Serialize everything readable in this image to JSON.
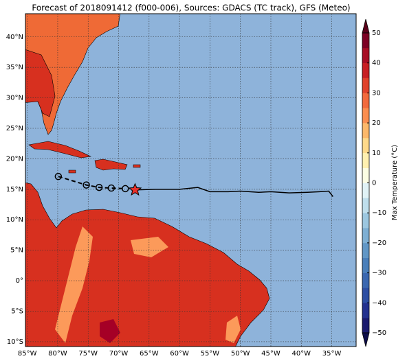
{
  "title": "Forecast of 2018091412 (f000-006), Sources: GDACS (TC track), GFS (Meteo)",
  "map": {
    "lonlim": [
      -85.3,
      -31.0
    ],
    "latlim": [
      -10.8,
      43.8
    ],
    "lonticks": [
      {
        "value": -85,
        "label": "85°W"
      },
      {
        "value": -80,
        "label": "80°W"
      },
      {
        "value": -75,
        "label": "75°W"
      },
      {
        "value": -70,
        "label": "70°W"
      },
      {
        "value": -65,
        "label": "65°W"
      },
      {
        "value": -60,
        "label": "60°W"
      },
      {
        "value": -55,
        "label": "55°W"
      },
      {
        "value": -50,
        "label": "50°W"
      },
      {
        "value": -45,
        "label": "45°W"
      },
      {
        "value": -40,
        "label": "40°W"
      },
      {
        "value": -35,
        "label": "35°W"
      }
    ],
    "latticks": [
      {
        "value": -10,
        "label": "10°S"
      },
      {
        "value": -5,
        "label": "5°S"
      },
      {
        "value": 0,
        "label": "0°"
      },
      {
        "value": 5,
        "label": "5°N"
      },
      {
        "value": 10,
        "label": "10°N"
      },
      {
        "value": 15,
        "label": "15°N"
      },
      {
        "value": 20,
        "label": "20°N"
      },
      {
        "value": 25,
        "label": "25°N"
      },
      {
        "value": 30,
        "label": "30°N"
      },
      {
        "value": 35,
        "label": "35°N"
      },
      {
        "value": 40,
        "label": "40°N"
      }
    ],
    "ocean_color": "#8eb3da"
  },
  "track": {
    "lon": [
      -79.9,
      -75.3,
      -73.2,
      -71.2,
      -68.9
    ],
    "lat": [
      17.1,
      15.7,
      15.3,
      15.2,
      15.1
    ]
  },
  "storm_position": {
    "lon": -67.3,
    "lat": 14.9,
    "color": "#e8302a"
  },
  "track_line": {
    "lon": [
      -67.3,
      -64,
      -60,
      -57,
      -55,
      -52,
      -50,
      -47,
      -45,
      -42,
      -39,
      -37,
      -35.5,
      -34.8
    ],
    "lat": [
      14.9,
      15.0,
      15.0,
      15.3,
      14.6,
      14.6,
      14.7,
      14.5,
      14.6,
      14.4,
      14.5,
      14.6,
      14.7,
      13.8
    ]
  },
  "colorbar": {
    "label": "Max Temperature (°C)",
    "lim": [
      -50,
      50
    ],
    "ticks": [
      {
        "value": -50,
        "label": "−50"
      },
      {
        "value": -40,
        "label": "−40"
      },
      {
        "value": -30,
        "label": "−30"
      },
      {
        "value": -20,
        "label": "−20"
      },
      {
        "value": -10,
        "label": "−10"
      },
      0,
      10,
      20,
      30,
      40,
      50
    ],
    "colors": [
      "#1a1a6e",
      "#23318f",
      "#2d4ea3",
      "#3a67b0",
      "#4a7fba",
      "#6197c6",
      "#7eafd3",
      "#9cc7e0",
      "#bfdeec",
      "#e1f2f6",
      "#fcfde3",
      "#fff0b0",
      "#fed98a",
      "#fdb86a",
      "#fb8e50",
      "#f26a3d",
      "#e0422c",
      "#c81f24",
      "#a70e25",
      "#7d0024"
    ],
    "under_color": "#0c0c4a",
    "over_color": "#5a001a"
  }
}
